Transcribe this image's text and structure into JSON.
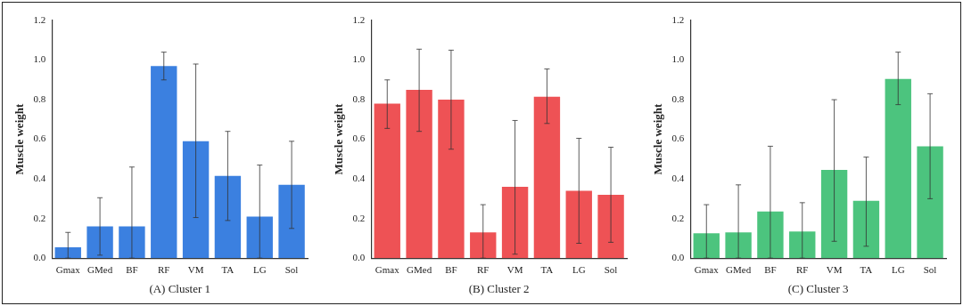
{
  "chart_data": [
    {
      "type": "bar",
      "xlabel": "(A) Cluster 1",
      "ylabel": "Muscle weight",
      "categories": [
        "Gmax",
        "GMed",
        "BF",
        "RF",
        "VM",
        "TA",
        "LG",
        "Sol"
      ],
      "series": [
        {
          "color": "#3b80e0",
          "values": [
            0.055,
            0.16,
            0.16,
            0.97,
            0.59,
            0.415,
            0.21,
            0.37
          ],
          "errors": [
            [
              0,
              0.13
            ],
            [
              0.015,
              0.305
            ],
            [
              0,
              0.46
            ],
            [
              0.9,
              1.04
            ],
            [
              0.205,
              0.98
            ],
            [
              0.19,
              0.64
            ],
            [
              0,
              0.47
            ],
            [
              0.15,
              0.59
            ]
          ]
        }
      ],
      "ylim": [
        0,
        1.2
      ],
      "yticks": [
        {
          "value": 0,
          "label": "0.0"
        },
        {
          "value": 0.2,
          "label": "0.2"
        },
        {
          "value": 0.4,
          "label": "0.4"
        },
        {
          "value": 0.6,
          "label": "0.6"
        },
        {
          "value": 0.8,
          "label": "0.8"
        },
        {
          "value": 1,
          "label": "1.0"
        },
        {
          "value": 1.2,
          "label": "1.2"
        }
      ],
      "grid": false,
      "legend": false
    },
    {
      "type": "bar",
      "xlabel": "(B) Cluster 2",
      "ylabel": "Muscle weight",
      "categories": [
        "Gmax",
        "GMed",
        "BF",
        "RF",
        "VM",
        "TA",
        "LG",
        "Sol"
      ],
      "series": [
        {
          "color": "#ee5255",
          "values": [
            0.78,
            0.85,
            0.8,
            0.13,
            0.36,
            0.815,
            0.34,
            0.32
          ],
          "errors": [
            [
              0.655,
              0.9
            ],
            [
              0.64,
              1.055
            ],
            [
              0.55,
              1.05
            ],
            [
              0,
              0.27
            ],
            [
              0.02,
              0.695
            ],
            [
              0.68,
              0.955
            ],
            [
              0.075,
              0.605
            ],
            [
              0.08,
              0.56
            ]
          ]
        }
      ],
      "ylim": [
        0,
        1.2
      ],
      "yticks": [
        {
          "value": 0,
          "label": "0.0"
        },
        {
          "value": 0.2,
          "label": "0.2"
        },
        {
          "value": 0.4,
          "label": "0.4"
        },
        {
          "value": 0.6,
          "label": "0.6"
        },
        {
          "value": 0.8,
          "label": "0.8"
        },
        {
          "value": 1,
          "label": "1.0"
        },
        {
          "value": 1.2,
          "label": "1.2"
        }
      ],
      "grid": false,
      "legend": false
    },
    {
      "type": "bar",
      "xlabel": "(C) Cluster 3",
      "ylabel": "Muscle weight",
      "categories": [
        "Gmax",
        "GMed",
        "BF",
        "RF",
        "VM",
        "TA",
        "LG",
        "Sol"
      ],
      "series": [
        {
          "color": "#4cc47e",
          "values": [
            0.125,
            0.13,
            0.235,
            0.135,
            0.445,
            0.29,
            0.905,
            0.565
          ],
          "errors": [
            [
              0,
              0.27
            ],
            [
              0,
              0.37
            ],
            [
              0,
              0.565
            ],
            [
              0,
              0.28
            ],
            [
              0.085,
              0.8
            ],
            [
              0.06,
              0.51
            ],
            [
              0.775,
              1.04
            ],
            [
              0.3,
              0.83
            ]
          ]
        }
      ],
      "ylim": [
        0,
        1.2
      ],
      "yticks": [
        {
          "value": 0,
          "label": "0.0"
        },
        {
          "value": 0.2,
          "label": "0.2"
        },
        {
          "value": 0.4,
          "label": "0.4"
        },
        {
          "value": 0.6,
          "label": "0.6"
        },
        {
          "value": 0.8,
          "label": "0.8"
        },
        {
          "value": 1,
          "label": "1.0"
        },
        {
          "value": 1.2,
          "label": "1.2"
        }
      ],
      "grid": false,
      "legend": false
    }
  ]
}
